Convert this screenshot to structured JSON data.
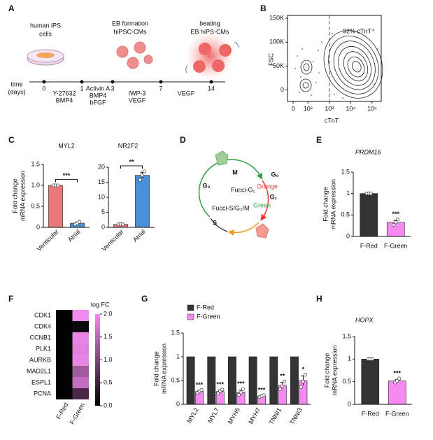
{
  "panel_labels": [
    "A",
    "B",
    "C",
    "D",
    "E",
    "F",
    "G",
    "H"
  ],
  "figure_a": {
    "stages": [
      [
        "human iPS",
        "cells"
      ],
      [
        "EB formation",
        "hiPSC-CMs"
      ],
      [
        "beating",
        "EB hiPS-CMs"
      ]
    ],
    "axis_label": [
      "time",
      "(days)"
    ],
    "days": [
      0,
      1,
      3,
      7,
      14
    ],
    "treatments": [
      [
        "Y-27632",
        "BMP4"
      ],
      [
        "Activin A",
        "BMP4",
        "bFGF"
      ],
      [
        "IWP-3",
        "VEGF"
      ],
      [
        "VEGF"
      ]
    ]
  },
  "figure_d": {
    "phases": [
      "M",
      "G₀",
      "G₁",
      "G₂",
      "S"
    ],
    "labels": [
      "Fucci-G₁",
      "Orange",
      "Fucci-S/G₂/M",
      "Green"
    ]
  },
  "chart_data": [
    {
      "type": "contour",
      "xlabel": "cTnT",
      "ylabel": "FSC",
      "annotation": "92% cTnT⁺",
      "xscale": "log",
      "gate": 1000,
      "xlim": [
        11,
        270000
      ],
      "ylim": [
        -24000,
        156000
      ],
      "xticks": [
        0,
        {
          "value": 100,
          "label": "10²"
        },
        {
          "value": 1000,
          "label": "10³"
        },
        {
          "value": 10000,
          "label": "10⁴"
        },
        {
          "value": 100000,
          "label": "10⁵"
        }
      ],
      "yticks": [
        0,
        {
          "value": 50000,
          "label": "50K"
        },
        {
          "value": 100000,
          "label": "100K"
        },
        {
          "value": 150000,
          "label": "150K"
        }
      ]
    },
    {
      "type": "bar",
      "title": "MYL2",
      "ylabel": [
        "Fold change",
        "mRNA expression"
      ],
      "categories": [
        "Venticular",
        "Atrial"
      ],
      "values": [
        1,
        0.1
      ],
      "errors": [
        0.01,
        0.03
      ],
      "points": [
        [
          1,
          1,
          1
        ],
        [
          0.07,
          0.1,
          0.13
        ]
      ],
      "colors": [
        "#e8797b",
        "#4a90d9"
      ],
      "significance": [
        "***"
      ],
      "significance_bracket": true,
      "category_rotation": -45,
      "ylim": [
        0,
        1.5
      ],
      "yticks": [
        0,
        0.5,
        {
          "value": 1,
          "label": "1.0"
        },
        1.5
      ]
    },
    {
      "type": "bar",
      "title": "NR2F2",
      "categories": [
        "Venticular",
        "Atrial"
      ],
      "values": [
        1,
        17.3
      ],
      "errors": [
        0.05,
        1.0
      ],
      "points": [
        [
          1,
          1,
          1
        ],
        [
          15.8,
          17.3,
          18.6
        ]
      ],
      "colors": [
        "#e8797b",
        "#4a90d9"
      ],
      "significance": [
        "**"
      ],
      "significance_bracket": true,
      "category_rotation": -45,
      "ylim": [
        0,
        20
      ],
      "yticks": [
        0,
        5,
        10,
        15,
        20
      ]
    },
    {
      "type": "bar",
      "title": "PRDM16",
      "title_style": "italic",
      "ylabel": [
        "Fold change",
        "mRNA expression"
      ],
      "categories": [
        "F-Red",
        "F-Green"
      ],
      "values": [
        1,
        0.33
      ],
      "errors": [
        0.01,
        0.04
      ],
      "points": [
        [
          1,
          1,
          1
        ],
        [
          0.27,
          0.33,
          0.4
        ]
      ],
      "colors": [
        "#333333",
        "#f58af0"
      ],
      "significance": [
        null,
        "***"
      ],
      "ylim": [
        0,
        1.5
      ],
      "yticks": [
        0,
        0.5,
        1,
        1.5
      ]
    },
    {
      "type": "heatmap",
      "rows": [
        "CDK1",
        "CDK4",
        "CCNB1",
        "PLK1",
        "AURKB",
        "MAD2L1",
        "ESPL1",
        "PCNA"
      ],
      "columns": [
        "F-Red",
        "F-Green"
      ],
      "values": [
        [
          0,
          2.0
        ],
        [
          0,
          0.1
        ],
        [
          0,
          1.9
        ],
        [
          0,
          1.85
        ],
        [
          0,
          1.9
        ],
        [
          0,
          1.3
        ],
        [
          0,
          1.6
        ],
        [
          0,
          0.6
        ]
      ],
      "colorbar_label": "log FC",
      "clim": [
        0,
        2
      ],
      "colormap": [
        "#000000",
        "#f58af0"
      ],
      "colorbar_ticks": [
        {
          "value": 0,
          "label": "0.0"
        },
        0.5,
        {
          "value": 1,
          "label": "1.0"
        },
        1.5,
        {
          "value": 2,
          "label": "2.0"
        }
      ]
    },
    {
      "type": "bar",
      "ylabel": [
        "Fold change",
        "mRNA expression"
      ],
      "categories": [
        "MYL2",
        "MYL7",
        "MYH6",
        "MYH7",
        "TNNI1",
        "TNNI3"
      ],
      "series": [
        {
          "name": "F-Red",
          "color": "#333333",
          "values": [
            1,
            1,
            1,
            1,
            1,
            1
          ]
        },
        {
          "name": "F-Green",
          "color": "#f58af0",
          "values": [
            0.27,
            0.27,
            0.26,
            0.17,
            0.4,
            0.5
          ],
          "errors": [
            0.02,
            0.03,
            0.04,
            0.02,
            0.06,
            0.1
          ],
          "points": [
            [
              0.24,
              0.27,
              0.3
            ],
            [
              0.23,
              0.28,
              0.31
            ],
            [
              0.2,
              0.25,
              0.32
            ],
            [
              0.15,
              0.17,
              0.19
            ],
            [
              0.32,
              0.38,
              0.48
            ],
            [
              0.36,
              0.48,
              0.62
            ]
          ],
          "significance": [
            "***",
            "***",
            "***",
            "***",
            "**",
            "*"
          ]
        }
      ],
      "legend": "upper left",
      "category_rotation": -60,
      "ylim": [
        0,
        1.5
      ],
      "yticks": [
        0,
        0.5,
        1,
        1.5
      ]
    },
    {
      "type": "bar",
      "title": "HOPX",
      "title_style": "italic",
      "ylabel": [
        "Fold change",
        "mRNA expression"
      ],
      "categories": [
        "F-Red",
        "F-Green"
      ],
      "values": [
        1,
        0.52
      ],
      "errors": [
        0.01,
        0.03
      ],
      "points": [
        [
          1,
          1,
          1
        ],
        [
          0.48,
          0.52,
          0.57
        ]
      ],
      "colors": [
        "#333333",
        "#f58af0"
      ],
      "significance": [
        null,
        "***"
      ],
      "ylim": [
        0,
        1.5
      ],
      "yticks": [
        0,
        0.5,
        1,
        1.5
      ]
    }
  ]
}
